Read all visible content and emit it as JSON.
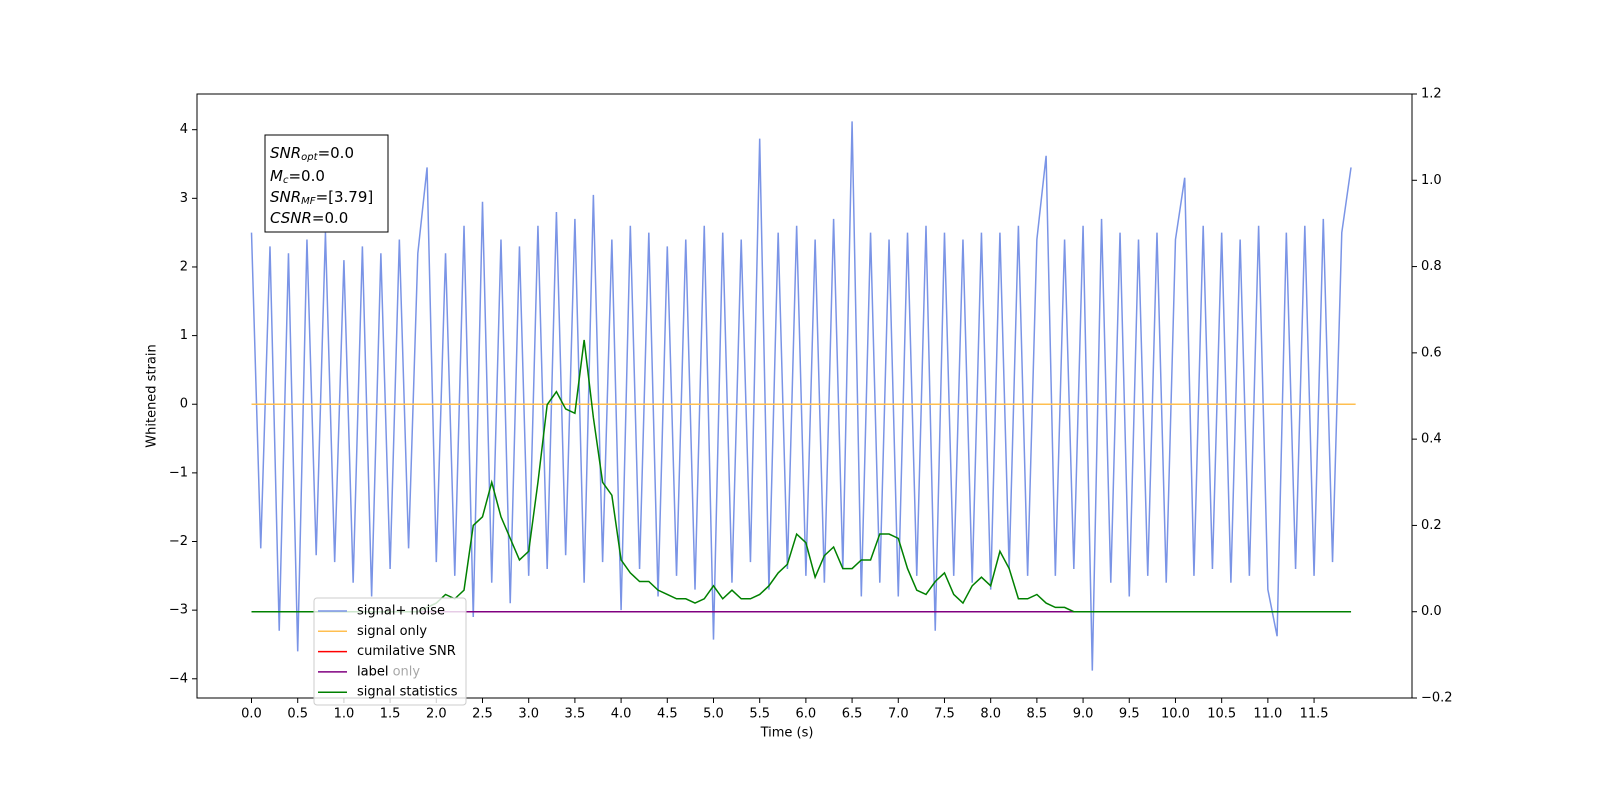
{
  "chart_data": {
    "type": "line",
    "xlabel": "Time (s)",
    "ylabel": "Whitened strain",
    "xlim": [
      -0.59,
      12.56
    ],
    "ylim": [
      -4.28,
      4.52
    ],
    "y2lim": [
      -0.2,
      1.2
    ],
    "xticks": [
      {
        "value": 0,
        "label": "0.0"
      },
      0.5,
      {
        "value": 1,
        "label": "1.0"
      },
      1.5,
      {
        "value": 2,
        "label": "2.0"
      },
      2.5,
      {
        "value": 3,
        "label": "3.0"
      },
      3.5,
      {
        "value": 4,
        "label": "4.0"
      },
      4.5,
      {
        "value": 5,
        "label": "5.0"
      },
      5.5,
      {
        "value": 6,
        "label": "6.0"
      },
      6.5,
      {
        "value": 7,
        "label": "7.0"
      },
      7.5,
      {
        "value": 8,
        "label": "8.0"
      },
      8.5,
      {
        "value": 9,
        "label": "9.0"
      },
      9.5,
      {
        "value": 10,
        "label": "10.0"
      },
      10.5,
      {
        "value": 11,
        "label": "11.0"
      },
      11.5
    ],
    "yticks": [
      {
        "value": -4,
        "label": "−4"
      },
      {
        "value": -3,
        "label": "−3"
      },
      {
        "value": -2,
        "label": "−2"
      },
      {
        "value": -1,
        "label": "−1"
      },
      0,
      1,
      2,
      3,
      4
    ],
    "y2ticks": [
      {
        "value": -0.2,
        "label": "−0.2"
      },
      {
        "value": 0,
        "label": "0.0"
      },
      0.2,
      0.4,
      0.6,
      0.8,
      {
        "value": 1,
        "label": "1.0"
      },
      1.2
    ],
    "x": [
      0,
      0.1,
      0.2,
      0.3,
      0.4,
      0.5,
      0.6,
      0.7,
      0.8,
      0.9,
      1,
      1.1,
      1.2,
      1.3,
      1.4,
      1.5,
      1.6,
      1.7,
      1.8,
      1.9,
      2,
      2.1,
      2.2,
      2.3,
      2.4,
      2.5,
      2.6,
      2.7,
      2.8,
      2.9,
      3,
      3.1,
      3.2,
      3.3,
      3.4,
      3.5,
      3.6,
      3.7,
      3.8,
      3.9,
      4,
      4.1,
      4.2,
      4.3,
      4.4,
      4.5,
      4.6,
      4.7,
      4.8,
      4.9,
      5,
      5.1,
      5.2,
      5.3,
      5.4,
      5.5,
      5.6,
      5.7,
      5.8,
      5.9,
      6,
      6.1,
      6.2,
      6.3,
      6.4,
      6.5,
      6.6,
      6.7,
      6.8,
      6.9,
      7,
      7.1,
      7.2,
      7.3,
      7.4,
      7.5,
      7.6,
      7.7,
      7.8,
      7.9,
      8,
      8.1,
      8.2,
      8.3,
      8.4,
      8.5,
      8.6,
      8.7,
      8.8,
      8.9,
      9,
      9.1,
      9.2,
      9.3,
      9.4,
      9.5,
      9.6,
      9.7,
      9.8,
      9.9,
      10,
      10.1,
      10.2,
      10.3,
      10.4,
      10.5,
      10.6,
      10.7,
      10.8,
      10.9,
      11,
      11.1,
      11.2,
      11.3,
      11.4,
      11.5,
      11.6,
      11.7,
      11.8,
      11.9
    ],
    "series": [
      {
        "name": "signal+ noise",
        "color": "#7a94e6",
        "values": [
          2.5,
          -2.1,
          2.3,
          -3.3,
          2.2,
          -3.6,
          2.4,
          -2.2,
          2.5,
          -2.3,
          2.1,
          -2.6,
          2.3,
          -2.8,
          2.2,
          -2.4,
          2.4,
          -2.1,
          2.2,
          3.45,
          -2.3,
          2.2,
          -2.5,
          2.6,
          -3.1,
          2.95,
          -2.6,
          2.4,
          -2.9,
          2.3,
          -2.5,
          2.6,
          -2.4,
          2.8,
          -2.2,
          2.7,
          -2.6,
          3.05,
          -2.3,
          2.4,
          -3.0,
          2.6,
          -2.4,
          2.5,
          -2.8,
          2.3,
          -2.5,
          2.4,
          -2.7,
          2.6,
          -3.43,
          2.5,
          -2.6,
          2.4,
          -2.3,
          3.87,
          -2.7,
          2.5,
          -2.4,
          2.6,
          -2.5,
          2.4,
          -2.6,
          2.7,
          -2.4,
          4.12,
          -2.8,
          2.5,
          -2.6,
          2.4,
          -2.8,
          2.5,
          -2.5,
          2.6,
          -3.3,
          2.5,
          -2.5,
          2.4,
          -2.6,
          2.5,
          -2.7,
          2.5,
          -2.4,
          2.6,
          -2.5,
          2.4,
          3.62,
          -2.5,
          2.4,
          -2.4,
          2.6,
          -3.88,
          2.7,
          -2.6,
          2.5,
          -2.8,
          2.4,
          -2.5,
          2.5,
          -2.6,
          2.4,
          3.3,
          -2.5,
          2.6,
          -2.4,
          2.5,
          -2.6,
          2.4,
          -2.5,
          2.6,
          -2.7,
          -3.38,
          2.5,
          -2.4,
          2.6,
          -2.5,
          2.7,
          -2.3,
          2.5,
          3.45
        ]
      },
      {
        "name": "signal only",
        "color": "#ffbf50",
        "x": [
          0,
          11.95
        ],
        "values": [
          0,
          0
        ]
      },
      {
        "name": "cumilative SNR",
        "color": "#ff0000",
        "axis": "y2",
        "x": [
          0,
          11.9
        ],
        "values": [
          0,
          0
        ]
      },
      {
        "name": "label",
        "color": "#800080",
        "axis": "y2",
        "x": [
          0,
          11.9
        ],
        "values": [
          0,
          0
        ]
      },
      {
        "name": "signal statistics",
        "color": "#008000",
        "axis": "y2",
        "values": [
          0,
          0,
          0,
          0,
          0,
          0,
          0,
          0,
          0,
          0,
          0,
          0,
          0,
          0,
          0,
          0,
          0,
          0,
          0,
          0.01,
          0.02,
          0.04,
          0.03,
          0.05,
          0.2,
          0.22,
          0.3,
          0.22,
          0.17,
          0.12,
          0.14,
          0.3,
          0.48,
          0.51,
          0.47,
          0.46,
          0.63,
          0.45,
          0.3,
          0.27,
          0.12,
          0.09,
          0.07,
          0.07,
          0.05,
          0.04,
          0.03,
          0.03,
          0.02,
          0.03,
          0.06,
          0.03,
          0.05,
          0.03,
          0.03,
          0.04,
          0.06,
          0.09,
          0.11,
          0.18,
          0.16,
          0.08,
          0.13,
          0.15,
          0.1,
          0.1,
          0.12,
          0.12,
          0.18,
          0.18,
          0.17,
          0.1,
          0.05,
          0.04,
          0.07,
          0.09,
          0.04,
          0.02,
          0.06,
          0.08,
          0.06,
          0.14,
          0.1,
          0.03,
          0.03,
          0.04,
          0.02,
          0.01,
          0.01,
          0,
          0,
          0,
          0,
          0,
          0,
          0,
          0,
          0,
          0,
          0,
          0,
          0,
          0,
          0,
          0,
          0,
          0,
          0,
          0,
          0,
          0,
          0,
          0,
          0,
          0,
          0,
          0,
          0,
          0,
          0
        ]
      }
    ],
    "legend_extra": "label only",
    "annotation": [
      {
        "symbol": "SNR",
        "sub": "opt",
        "text": "=0.0"
      },
      {
        "symbol": "M",
        "sub": "c",
        "text": "=0.0"
      },
      {
        "symbol": "SNR",
        "sub": "MF",
        "text": "=[3.79]"
      },
      {
        "symbol": "CSNR",
        "text": "=0.0"
      }
    ]
  }
}
